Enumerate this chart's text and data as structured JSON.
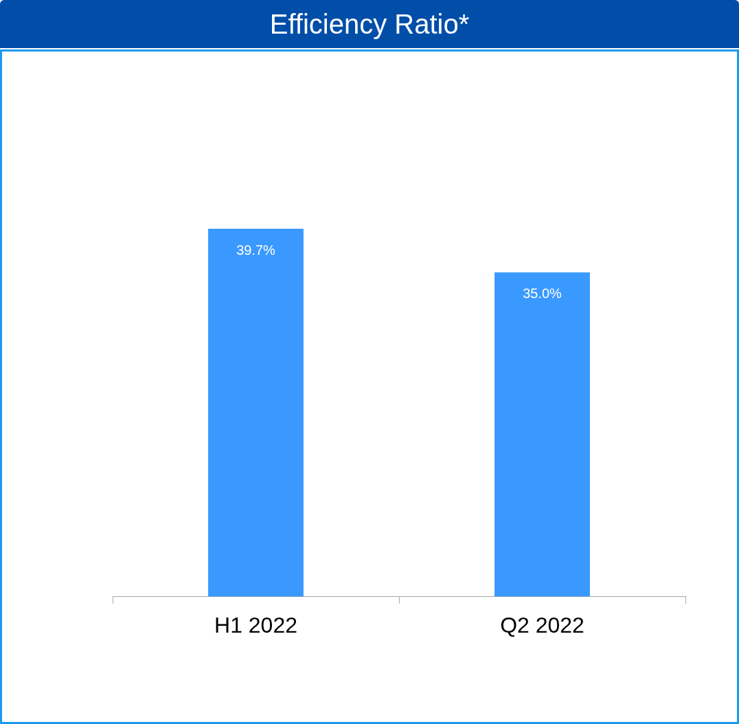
{
  "chart_data": {
    "type": "bar",
    "title": "Efficiency Ratio*",
    "categories": [
      "H1 2022",
      "Q2 2022"
    ],
    "values": [
      39.7,
      35.0
    ],
    "value_labels": [
      "39.7%",
      "35.0%"
    ],
    "color": "#3a99ff",
    "grid": false,
    "legend": false
  }
}
